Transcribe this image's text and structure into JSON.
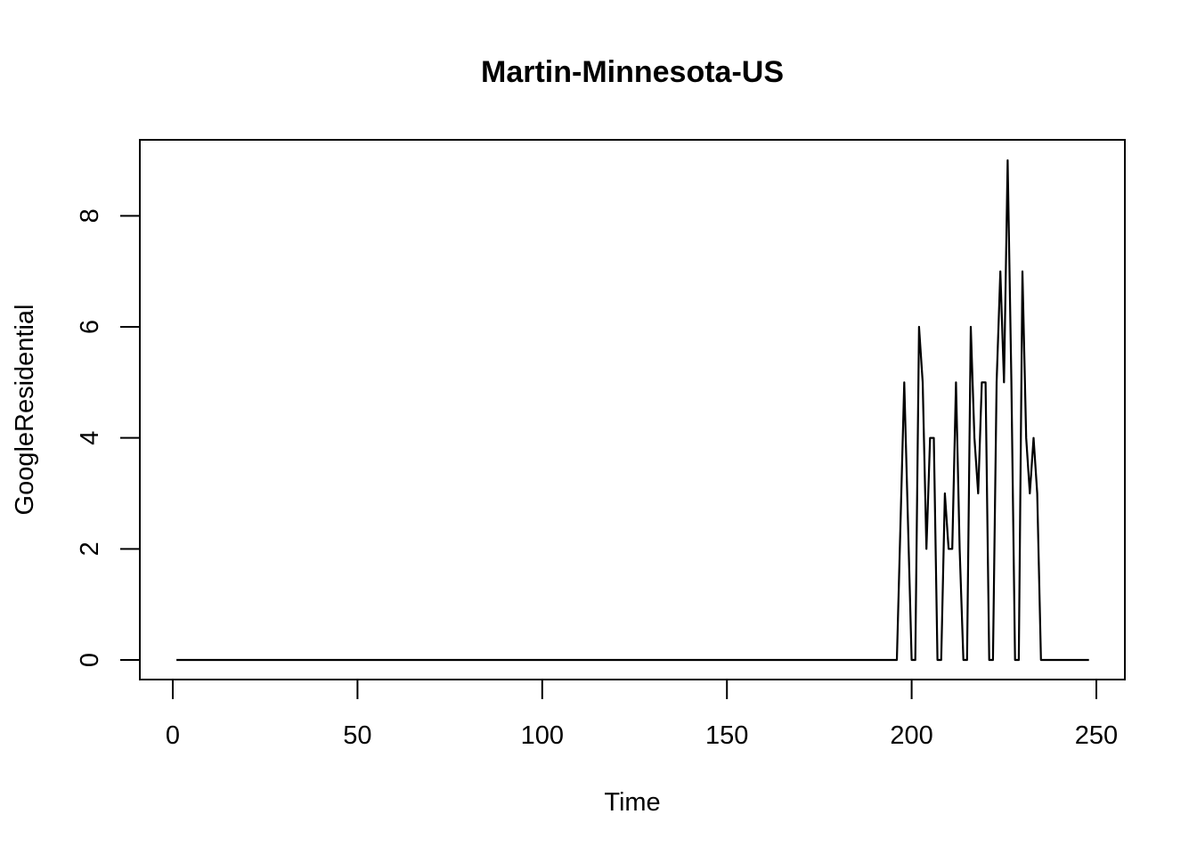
{
  "chart_data": {
    "type": "line",
    "title": "Martin-Minnesota-US",
    "xlabel": "Time",
    "ylabel": "GoogleResidential",
    "xlim": [
      0,
      250
    ],
    "ylim": [
      0,
      9
    ],
    "x_ticks": [
      0,
      50,
      100,
      150,
      200,
      250
    ],
    "y_ticks": [
      0,
      2,
      4,
      6,
      8
    ],
    "grid": false,
    "legend": "none",
    "line_color": "#000000",
    "series": [
      {
        "x": [
          1,
          196,
          198,
          200,
          201,
          202,
          203,
          204,
          205,
          206,
          207,
          208,
          209,
          210,
          211,
          212,
          213,
          214,
          215,
          216,
          217,
          218,
          219,
          220,
          221,
          222,
          223,
          224,
          225,
          226,
          227,
          228,
          229,
          230,
          231,
          232,
          233,
          234,
          235,
          248
        ],
        "y": [
          0,
          0,
          5,
          0,
          0,
          6,
          5,
          2,
          4,
          4,
          0,
          0,
          3,
          2,
          2,
          5,
          2,
          0,
          0,
          6,
          4,
          3,
          5,
          5,
          0,
          0,
          5,
          7,
          5,
          9,
          5,
          0,
          0,
          7,
          4,
          3,
          4,
          3,
          0,
          0
        ]
      }
    ]
  }
}
